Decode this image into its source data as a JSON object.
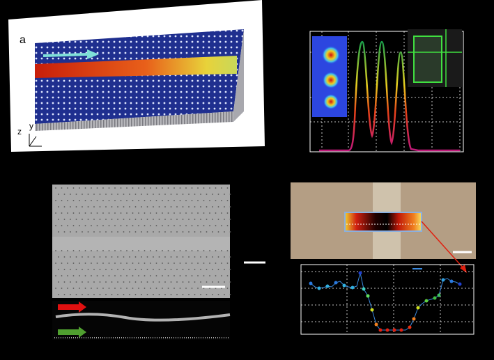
{
  "panel_a": {
    "label": "a",
    "axes": {
      "z": "z",
      "y": "y"
    }
  }
}
